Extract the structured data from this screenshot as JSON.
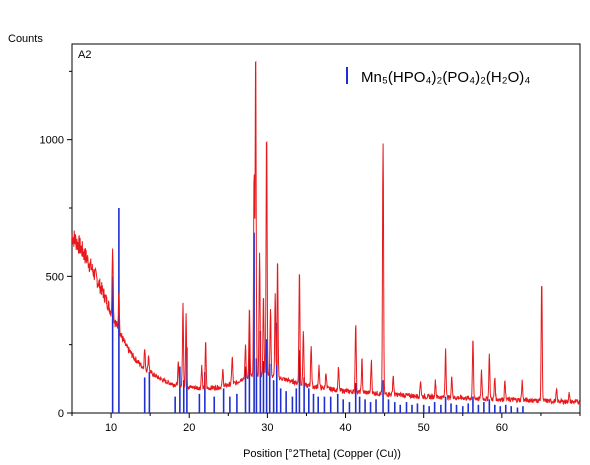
{
  "chart_data": {
    "type": "line",
    "title": "",
    "panel_label": "A2",
    "ylabel": "Counts",
    "xlabel": "Position [°2Theta] (Copper (Cu))",
    "xlim": [
      5,
      70
    ],
    "ylim": [
      0,
      1350
    ],
    "x_ticks": [
      10,
      20,
      30,
      40,
      50,
      60
    ],
    "y_ticks": [
      0,
      500,
      1000
    ],
    "grid": false,
    "legend_position": "top-right",
    "colors": {
      "pattern": "#e8191c",
      "reference": "#1f2fd0",
      "axis": "#000000"
    },
    "series": [
      {
        "kind": "line",
        "baseline": [
          [
            5,
            650
          ],
          [
            6,
            610
          ],
          [
            7,
            560
          ],
          [
            8,
            500
          ],
          [
            9,
            440
          ],
          [
            10,
            370
          ],
          [
            11,
            300
          ],
          [
            12,
            240
          ],
          [
            13,
            200
          ],
          [
            14,
            170
          ],
          [
            15,
            150
          ],
          [
            16,
            130
          ],
          [
            17,
            115
          ],
          [
            18,
            105
          ],
          [
            20,
            95
          ],
          [
            22,
            90
          ],
          [
            24,
            95
          ],
          [
            26,
            110
          ],
          [
            27,
            130
          ],
          [
            30,
            140
          ],
          [
            32,
            125
          ],
          [
            35,
            100
          ],
          [
            40,
            80
          ],
          [
            45,
            70
          ],
          [
            50,
            60
          ],
          [
            55,
            55
          ],
          [
            60,
            50
          ],
          [
            65,
            45
          ],
          [
            70,
            40
          ]
        ],
        "peaks": [
          [
            10.2,
            260
          ],
          [
            11,
            150
          ],
          [
            14.3,
            70
          ],
          [
            14.8,
            60
          ],
          [
            18.6,
            80
          ],
          [
            19.2,
            300
          ],
          [
            19.6,
            260
          ],
          [
            21.6,
            80
          ],
          [
            22.1,
            170
          ],
          [
            24.3,
            60
          ],
          [
            25.5,
            100
          ],
          [
            27.2,
            120
          ],
          [
            27.7,
            250
          ],
          [
            28.3,
            750
          ],
          [
            28.5,
            1200
          ],
          [
            29.0,
            450
          ],
          [
            29.5,
            300
          ],
          [
            29.9,
            900
          ],
          [
            30.4,
            250
          ],
          [
            31.0,
            300
          ],
          [
            31.3,
            430
          ],
          [
            34.1,
            420
          ],
          [
            34.6,
            200
          ],
          [
            35.6,
            150
          ],
          [
            36.6,
            80
          ],
          [
            37.5,
            60
          ],
          [
            39.1,
            80
          ],
          [
            41.3,
            250
          ],
          [
            42.1,
            120
          ],
          [
            43.3,
            120
          ],
          [
            44.8,
            920
          ],
          [
            46.1,
            70
          ],
          [
            49.6,
            60
          ],
          [
            51.5,
            60
          ],
          [
            52.8,
            180
          ],
          [
            53.6,
            80
          ],
          [
            56.3,
            220
          ],
          [
            57.4,
            100
          ],
          [
            58.4,
            160
          ],
          [
            59.1,
            80
          ],
          [
            60.4,
            70
          ],
          [
            62.6,
            70
          ],
          [
            65.1,
            440
          ],
          [
            67.0,
            40
          ],
          [
            68.6,
            30
          ]
        ]
      },
      {
        "name": "Mn₅(HPO₄)₂(PO₄)₂(H₂O)₄",
        "kind": "sticks",
        "sticks": [
          [
            10.2,
            500
          ],
          [
            11.0,
            750
          ],
          [
            14.3,
            130
          ],
          [
            14.9,
            150
          ],
          [
            18.2,
            60
          ],
          [
            18.8,
            170
          ],
          [
            19.3,
            120
          ],
          [
            19.7,
            240
          ],
          [
            21.3,
            70
          ],
          [
            22.0,
            150
          ],
          [
            23.2,
            60
          ],
          [
            24.4,
            90
          ],
          [
            25.2,
            60
          ],
          [
            26.1,
            70
          ],
          [
            27.2,
            170
          ],
          [
            27.7,
            300
          ],
          [
            28.3,
            660
          ],
          [
            28.6,
            200
          ],
          [
            29.1,
            300
          ],
          [
            29.5,
            190
          ],
          [
            29.9,
            270
          ],
          [
            30.3,
            180
          ],
          [
            30.8,
            120
          ],
          [
            31.2,
            330
          ],
          [
            31.7,
            90
          ],
          [
            32.4,
            80
          ],
          [
            33.2,
            60
          ],
          [
            33.7,
            90
          ],
          [
            34.1,
            230
          ],
          [
            34.7,
            130
          ],
          [
            35.3,
            90
          ],
          [
            35.9,
            70
          ],
          [
            36.5,
            60
          ],
          [
            37.3,
            60
          ],
          [
            38.1,
            60
          ],
          [
            39.0,
            70
          ],
          [
            39.7,
            50
          ],
          [
            40.5,
            40
          ],
          [
            41.3,
            110
          ],
          [
            41.8,
            60
          ],
          [
            42.5,
            50
          ],
          [
            43.2,
            40
          ],
          [
            43.9,
            50
          ],
          [
            44.8,
            120
          ],
          [
            45.5,
            50
          ],
          [
            46.3,
            40
          ],
          [
            47.0,
            30
          ],
          [
            47.8,
            40
          ],
          [
            48.5,
            30
          ],
          [
            49.2,
            35
          ],
          [
            50.0,
            30
          ],
          [
            50.7,
            25
          ],
          [
            51.4,
            40
          ],
          [
            52.2,
            30
          ],
          [
            52.8,
            60
          ],
          [
            53.5,
            35
          ],
          [
            54.2,
            30
          ],
          [
            55.0,
            25
          ],
          [
            55.7,
            35
          ],
          [
            56.3,
            60
          ],
          [
            57.0,
            30
          ],
          [
            57.7,
            40
          ],
          [
            58.4,
            50
          ],
          [
            59.1,
            30
          ],
          [
            59.8,
            25
          ],
          [
            60.5,
            30
          ],
          [
            61.2,
            25
          ],
          [
            62.0,
            20
          ],
          [
            62.7,
            25
          ]
        ]
      }
    ]
  }
}
